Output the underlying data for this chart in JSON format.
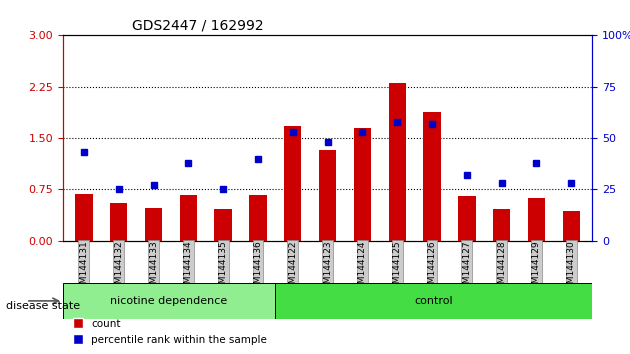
{
  "title": "GDS2447 / 162992",
  "samples": [
    "GSM144131",
    "GSM144132",
    "GSM144133",
    "GSM144134",
    "GSM144135",
    "GSM144136",
    "GSM144122",
    "GSM144123",
    "GSM144124",
    "GSM144125",
    "GSM144126",
    "GSM144127",
    "GSM144128",
    "GSM144129",
    "GSM144130"
  ],
  "count": [
    0.68,
    0.55,
    0.48,
    0.67,
    0.47,
    0.67,
    1.68,
    1.32,
    1.65,
    2.3,
    1.88,
    0.65,
    0.47,
    0.63,
    0.43
  ],
  "percentile": [
    43,
    25,
    27,
    38,
    25,
    40,
    53,
    48,
    53,
    58,
    57,
    32,
    28,
    38,
    28
  ],
  "groups": [
    {
      "label": "nicotine dependence",
      "start": 0,
      "end": 6,
      "color": "#90ee90"
    },
    {
      "label": "control",
      "start": 6,
      "end": 15,
      "color": "#00cc00"
    }
  ],
  "ylim_left": [
    0,
    3
  ],
  "ylim_right": [
    0,
    100
  ],
  "yticks_left": [
    0,
    0.75,
    1.5,
    2.25,
    3
  ],
  "yticks_right": [
    0,
    25,
    50,
    75,
    100
  ],
  "bar_color": "#cc0000",
  "dot_color": "#0000cc",
  "hline_values": [
    0.75,
    1.5,
    2.25
  ],
  "right_axis_label_suffix": "%",
  "legend_count_label": "count",
  "legend_percentile_label": "percentile rank within the sample",
  "group_label_prefix": "disease state",
  "group_tick_bg": "#cccccc",
  "bar_width": 0.5
}
